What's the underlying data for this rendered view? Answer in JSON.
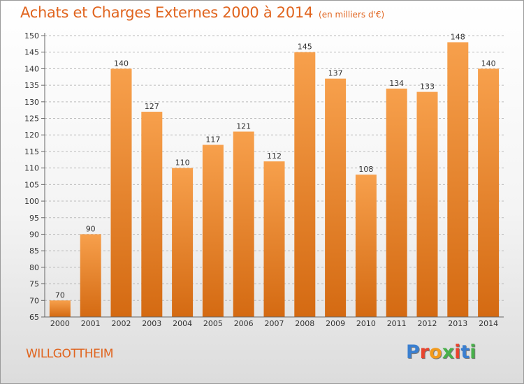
{
  "chart_data": {
    "type": "bar",
    "title": "Achats et Charges Externes 2000 à 2014",
    "subtitle": "(en milliers d'€)",
    "categories": [
      "2000",
      "2001",
      "2002",
      "2003",
      "2004",
      "2005",
      "2006",
      "2007",
      "2008",
      "2009",
      "2010",
      "2011",
      "2012",
      "2013",
      "2014"
    ],
    "values": [
      70,
      90,
      140,
      127,
      110,
      117,
      121,
      112,
      145,
      137,
      108,
      134,
      133,
      148,
      140
    ],
    "ylim": [
      65,
      150
    ],
    "yticks": [
      65,
      70,
      75,
      80,
      85,
      90,
      95,
      100,
      105,
      110,
      115,
      120,
      125,
      130,
      135,
      140,
      145,
      150
    ],
    "grid": true,
    "colors": {
      "bar_top": "#f7a04c",
      "bar_bottom": "#d46a12",
      "axis": "#666666",
      "grid": "#bbbbbb",
      "title": "#e0641e"
    }
  },
  "location": "WILLGOTTHEIM",
  "logo": {
    "letters": [
      "P",
      "r",
      "o",
      "x",
      "i",
      "t",
      "i"
    ],
    "colors": [
      "#3a7fd0",
      "#e8442e",
      "#f29a1c",
      "#48b04a",
      "#e8442e",
      "#3a7fd0",
      "#48b04a"
    ]
  }
}
